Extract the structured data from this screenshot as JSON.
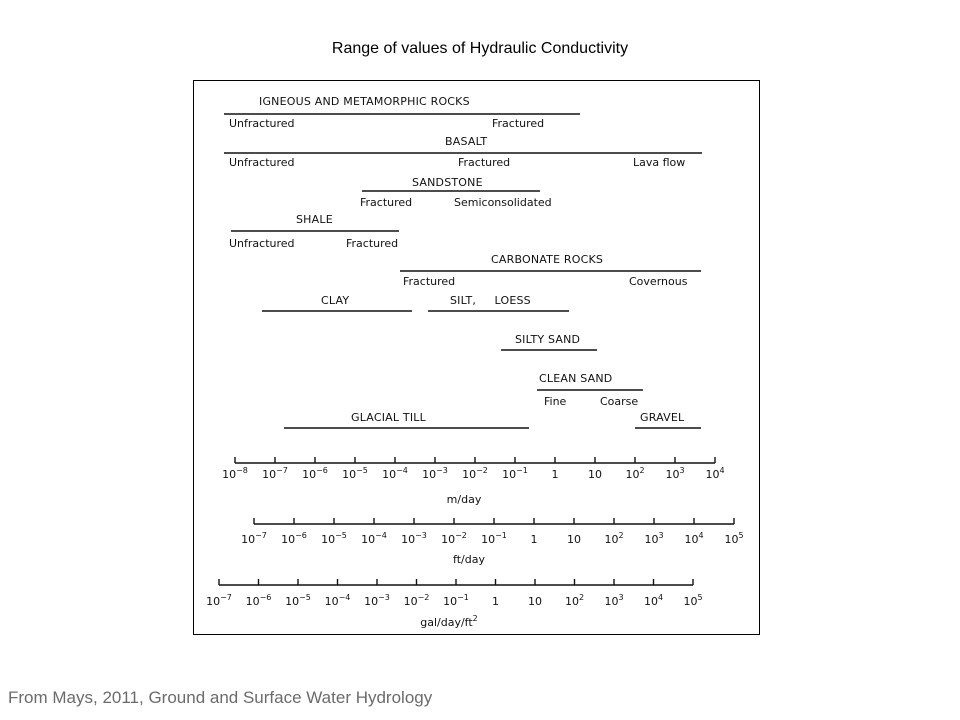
{
  "title": "Range of values of Hydraulic Conductivity",
  "source": "From Mays, 2011, Ground and Surface Water Hydrology",
  "diagram": {
    "groups": [
      {
        "name": "IGNEOUS AND METAMORPHIC ROCKS",
        "labels": [
          "Unfractured",
          "Fractured"
        ]
      },
      {
        "name": "BASALT",
        "labels": [
          "Unfractured",
          "Fractured",
          "Lava flow"
        ]
      },
      {
        "name": "SANDSTONE",
        "labels": [
          "Fractured",
          "Semiconsolidated"
        ]
      },
      {
        "name": "SHALE",
        "labels": [
          "Unfractured",
          "Fractured"
        ]
      },
      {
        "name": "CARBONATE ROCKS",
        "labels": [
          "Fractured",
          "Covernous"
        ]
      },
      {
        "name": "CLAY",
        "labels": []
      },
      {
        "name": "SILT,     LOESS",
        "labels": []
      },
      {
        "name": "SILTY SAND",
        "labels": []
      },
      {
        "name": "CLEAN SAND",
        "labels": [
          "Fine",
          "Coarse"
        ]
      },
      {
        "name": "GLACIAL TILL",
        "labels": []
      },
      {
        "name": "GRAVEL",
        "labels": []
      }
    ],
    "axes": [
      {
        "unit": "m/day",
        "ticks": [
          {
            "base": "10",
            "exp": "−8"
          },
          {
            "base": "10",
            "exp": "−7"
          },
          {
            "base": "10",
            "exp": "−6"
          },
          {
            "base": "10",
            "exp": "−5"
          },
          {
            "base": "10",
            "exp": "−4"
          },
          {
            "base": "10",
            "exp": "−3"
          },
          {
            "base": "10",
            "exp": "−2"
          },
          {
            "base": "10",
            "exp": "−1"
          },
          {
            "base": "1",
            "exp": ""
          },
          {
            "base": "10",
            "exp": ""
          },
          {
            "base": "10",
            "exp": "2"
          },
          {
            "base": "10",
            "exp": "3"
          },
          {
            "base": "10",
            "exp": "4"
          }
        ]
      },
      {
        "unit": "ft/day",
        "ticks": [
          {
            "base": "10",
            "exp": "−7"
          },
          {
            "base": "10",
            "exp": "−6"
          },
          {
            "base": "10",
            "exp": "−5"
          },
          {
            "base": "10",
            "exp": "−4"
          },
          {
            "base": "10",
            "exp": "−3"
          },
          {
            "base": "10",
            "exp": "−2"
          },
          {
            "base": "10",
            "exp": "−1"
          },
          {
            "base": "1",
            "exp": ""
          },
          {
            "base": "10",
            "exp": ""
          },
          {
            "base": "10",
            "exp": "2"
          },
          {
            "base": "10",
            "exp": "3"
          },
          {
            "base": "10",
            "exp": "4"
          },
          {
            "base": "10",
            "exp": "5"
          }
        ]
      },
      {
        "unit": "gal/day/ft",
        "unit_exp": "2",
        "ticks": [
          {
            "base": "10",
            "exp": "−7"
          },
          {
            "base": "10",
            "exp": "−6"
          },
          {
            "base": "10",
            "exp": "−5"
          },
          {
            "base": "10",
            "exp": "−4"
          },
          {
            "base": "10",
            "exp": "−3"
          },
          {
            "base": "10",
            "exp": "−2"
          },
          {
            "base": "10",
            "exp": "−1"
          },
          {
            "base": "1",
            "exp": ""
          },
          {
            "base": "10",
            "exp": ""
          },
          {
            "base": "10",
            "exp": "2"
          },
          {
            "base": "10",
            "exp": "3"
          },
          {
            "base": "10",
            "exp": "4"
          },
          {
            "base": "10",
            "exp": "5"
          }
        ]
      }
    ]
  }
}
